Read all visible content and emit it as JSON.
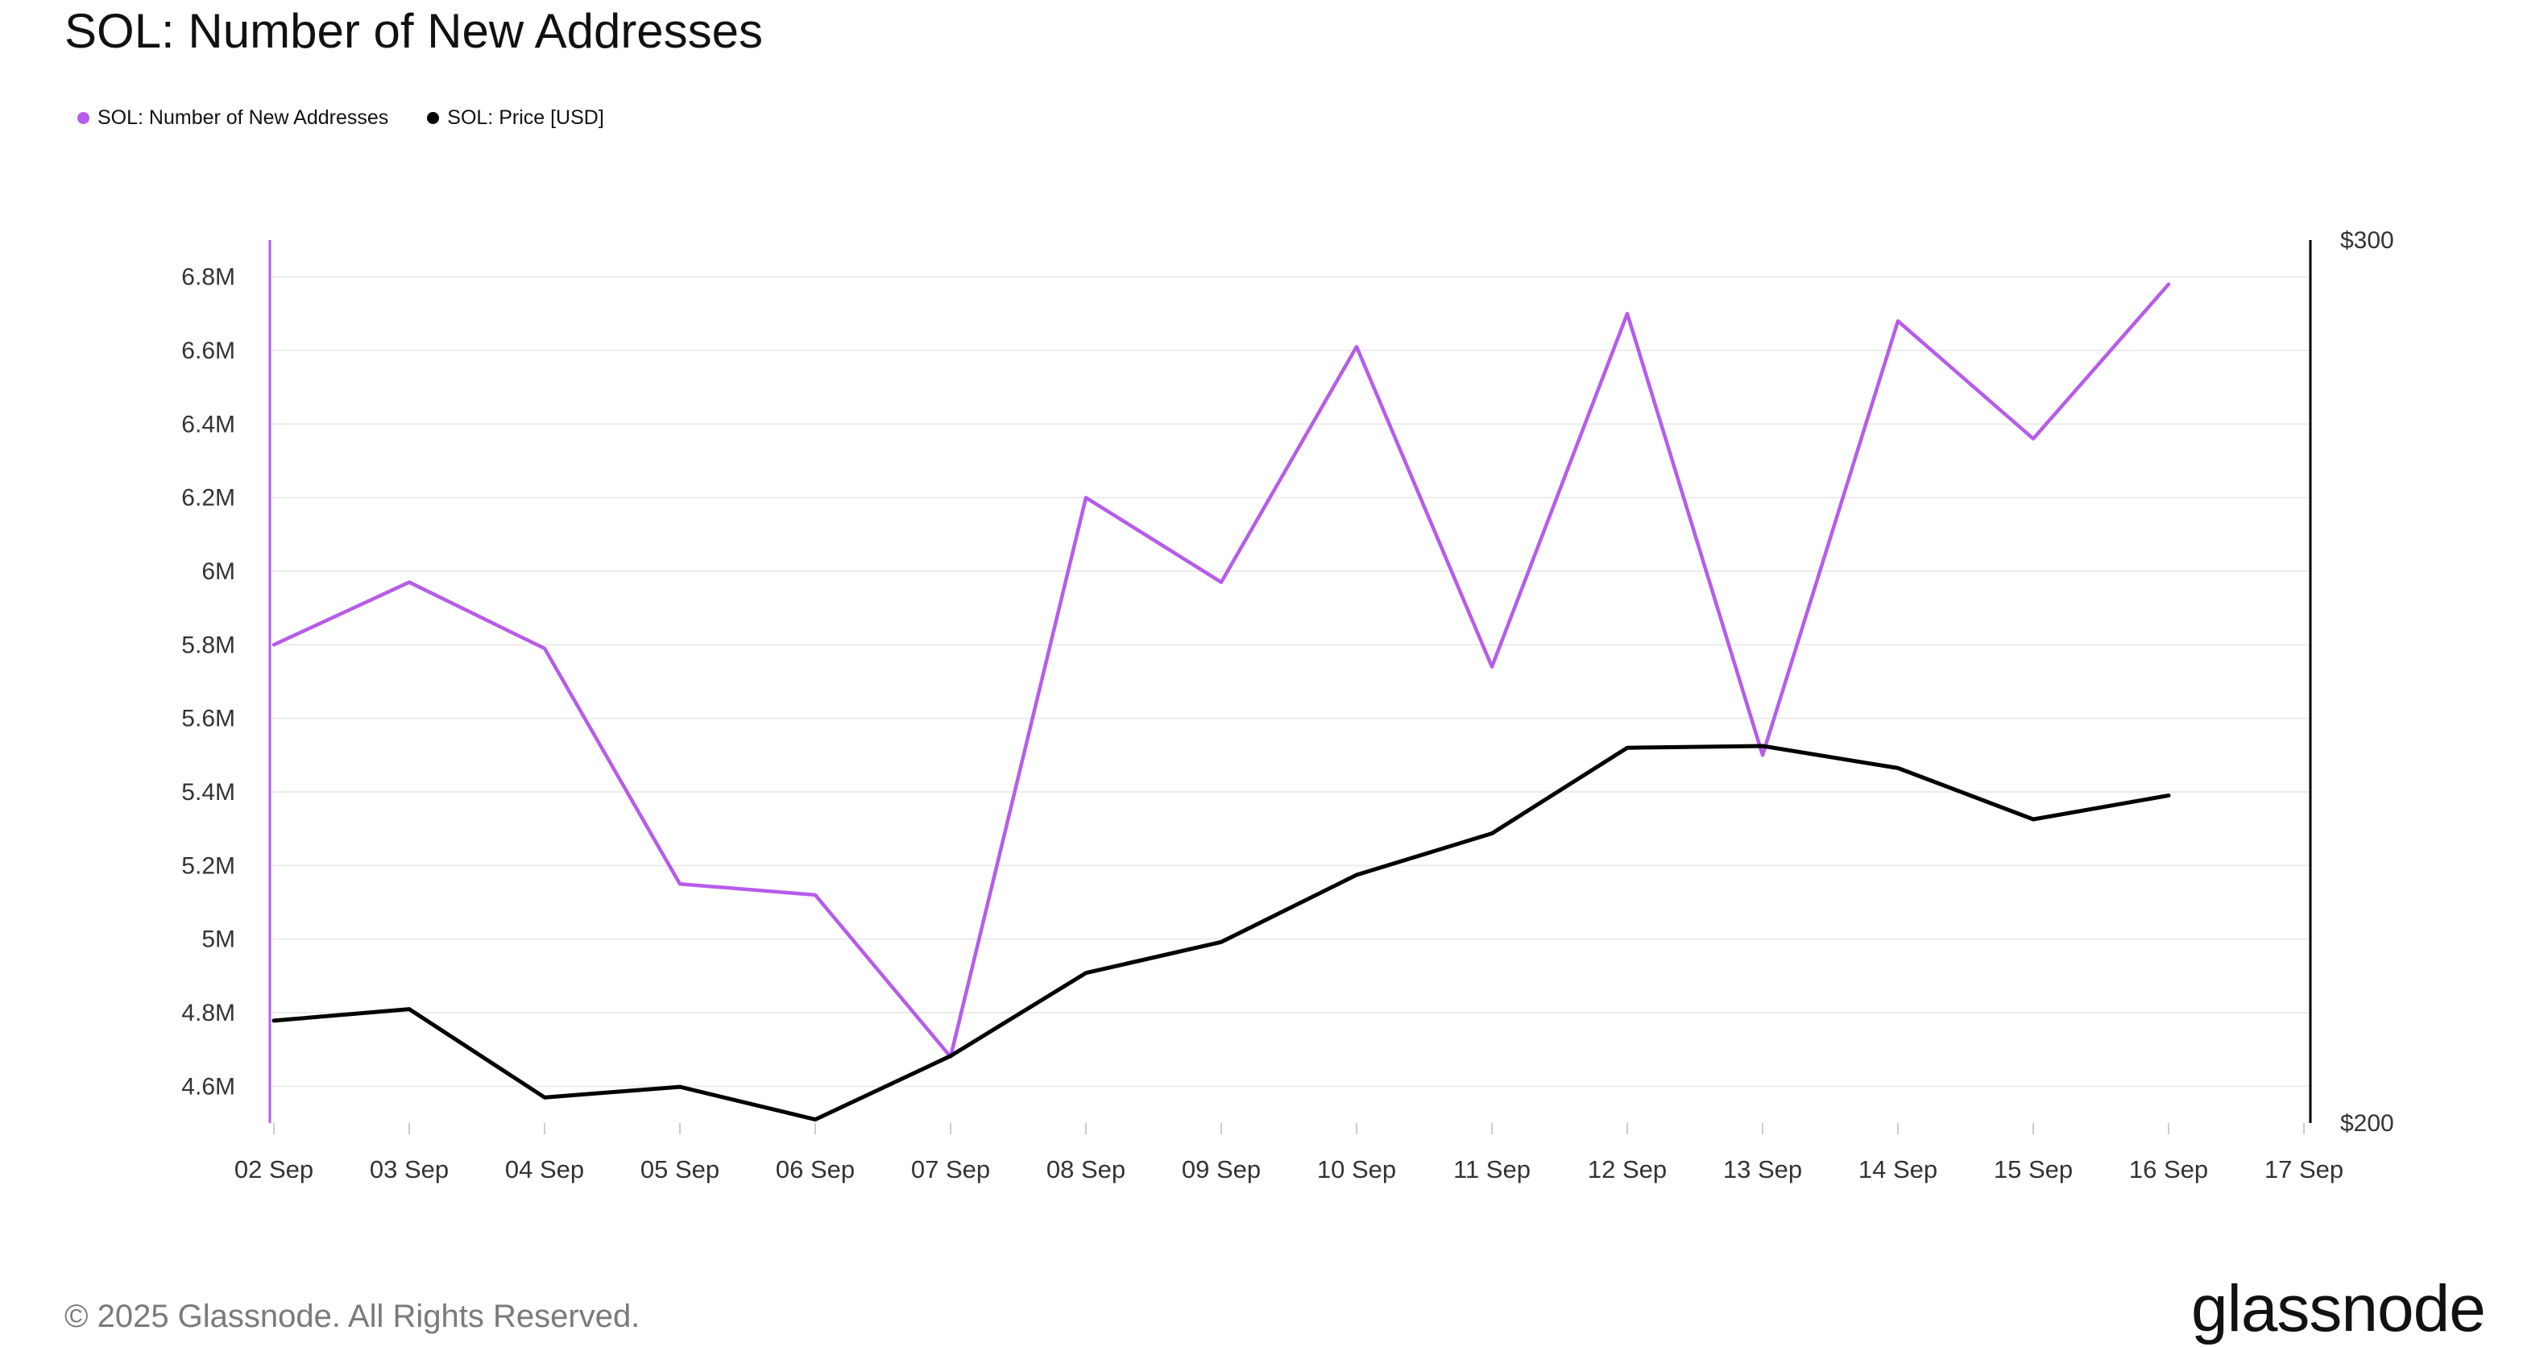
{
  "title": "SOL: Number of New Addresses",
  "legend": [
    {
      "label": "SOL: Number of New Addresses",
      "color": "#b65cea"
    },
    {
      "label": "SOL: Price [USD]",
      "color": "#000000"
    }
  ],
  "footer": {
    "copyright": "© 2025 Glassnode. All Rights Reserved.",
    "brand": "glassnode"
  },
  "chart_data": {
    "type": "line",
    "categories": [
      "02 Sep",
      "03 Sep",
      "04 Sep",
      "05 Sep",
      "06 Sep",
      "07 Sep",
      "08 Sep",
      "09 Sep",
      "10 Sep",
      "11 Sep",
      "12 Sep",
      "13 Sep",
      "14 Sep",
      "15 Sep",
      "16 Sep",
      "17 Sep"
    ],
    "series": [
      {
        "name": "SOL: Number of New Addresses",
        "axis": "left",
        "color": "#b65cea",
        "values": [
          5.8,
          5.97,
          5.79,
          5.15,
          5.12,
          4.68,
          6.2,
          5.97,
          6.61,
          5.74,
          6.7,
          5.5,
          6.68,
          6.36,
          6.78,
          null
        ]
      },
      {
        "name": "SOL: Price [USD]",
        "axis": "right",
        "color": "#000000",
        "values": [
          211.6,
          212.9,
          202.9,
          204.1,
          200.4,
          207.6,
          217.0,
          220.5,
          228.1,
          232.8,
          242.5,
          242.7,
          240.2,
          234.4,
          237.1,
          null
        ]
      }
    ],
    "y_left": {
      "ticks": [
        4.6,
        4.8,
        5.0,
        5.2,
        5.4,
        5.6,
        5.8,
        6.0,
        6.2,
        6.4,
        6.6,
        6.8
      ],
      "tick_labels": [
        "4.6M",
        "4.8M",
        "5M",
        "5.2M",
        "5.4M",
        "5.6M",
        "5.8M",
        "6M",
        "6.2M",
        "6.4M",
        "6.6M",
        "6.8M"
      ],
      "range": [
        4.5,
        6.9
      ],
      "color": "#b65cea"
    },
    "y_right": {
      "ticks": [
        200,
        300
      ],
      "tick_labels": [
        "$200",
        "$300"
      ],
      "range": [
        200,
        300
      ],
      "color": "#000000"
    },
    "grid": true,
    "legend_position": "top-left"
  }
}
